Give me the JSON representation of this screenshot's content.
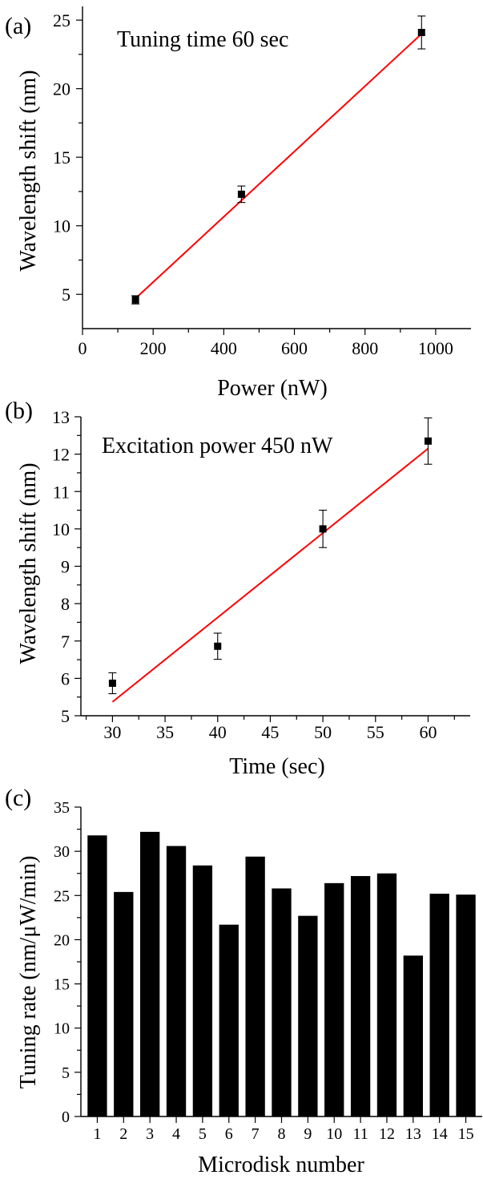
{
  "chart_data": [
    {
      "panel": "(a)",
      "type": "scatter",
      "annotation": "Tuning time 60 sec",
      "xlabel": "Power (nW)",
      "ylabel": "Wavelength shift (nm)",
      "xlim": [
        0,
        1100
      ],
      "ylim": [
        2.5,
        26
      ],
      "xticks": [
        0,
        200,
        400,
        600,
        800,
        1000
      ],
      "yticks": [
        5,
        10,
        15,
        20,
        25
      ],
      "points": [
        {
          "x": 150,
          "y": 4.6,
          "err": 0.3
        },
        {
          "x": 450,
          "y": 12.3,
          "err": 0.6
        },
        {
          "x": 960,
          "y": 24.1,
          "err": 1.2
        }
      ],
      "fit": {
        "x": [
          150,
          960
        ],
        "y": [
          4.7,
          24.0
        ],
        "color": "#ff0000"
      }
    },
    {
      "panel": "(b)",
      "type": "scatter",
      "annotation": "Excitation power 450 nW",
      "xlabel": "Time (sec)",
      "ylabel": "Wavelength shift (nm)",
      "xlim": [
        27,
        64
      ],
      "ylim": [
        5,
        13
      ],
      "xticks": [
        30,
        35,
        40,
        45,
        50,
        55,
        60
      ],
      "yticks": [
        5,
        6,
        7,
        8,
        9,
        10,
        11,
        12,
        13
      ],
      "points": [
        {
          "x": 30,
          "y": 5.87,
          "err": 0.28
        },
        {
          "x": 40,
          "y": 6.86,
          "err": 0.35
        },
        {
          "x": 50,
          "y": 10.0,
          "err": 0.5
        },
        {
          "x": 60,
          "y": 12.35,
          "err": 0.62
        }
      ],
      "fit": {
        "x": [
          30,
          60
        ],
        "y": [
          5.37,
          12.15
        ],
        "color": "#ff0000"
      }
    },
    {
      "panel": "(c)",
      "type": "bar",
      "xlabel": "Microdisk number",
      "ylabel": "Tuning rate (nm/μW/min)",
      "ylim": [
        0,
        35
      ],
      "yticks": [
        0,
        5,
        10,
        15,
        20,
        25,
        30,
        35
      ],
      "categories": [
        "1",
        "2",
        "3",
        "4",
        "5",
        "6",
        "7",
        "8",
        "9",
        "10",
        "11",
        "12",
        "13",
        "14",
        "15"
      ],
      "values": [
        31.8,
        25.4,
        32.2,
        30.6,
        28.4,
        21.7,
        29.4,
        25.8,
        22.7,
        26.4,
        27.2,
        27.5,
        18.2,
        25.2,
        25.1
      ]
    }
  ]
}
